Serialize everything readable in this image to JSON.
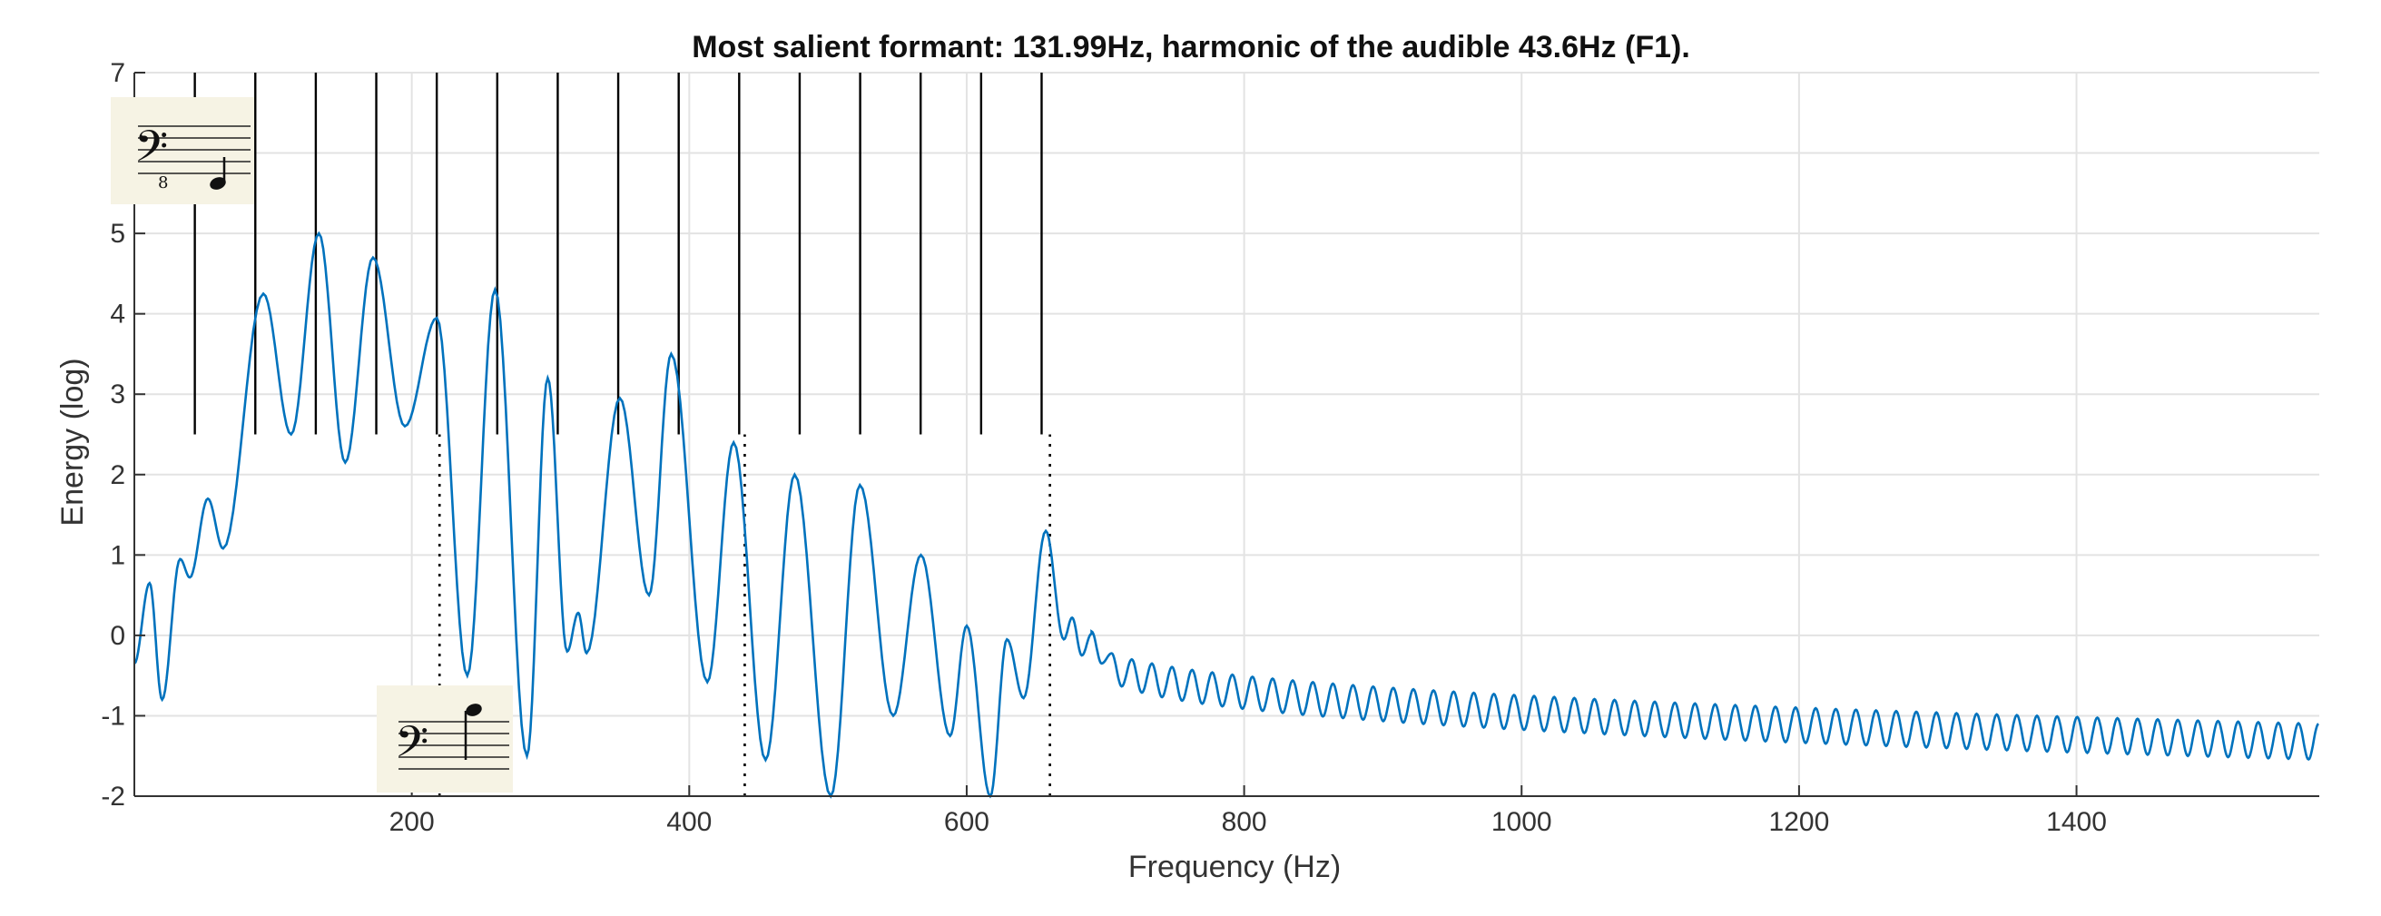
{
  "chart_data": {
    "type": "line",
    "title": "Most salient formant: 131.99Hz, harmonic of the audible 43.6Hz (F1).",
    "xlabel": "Frequency (Hz)",
    "ylabel": "Energy (log)",
    "xlim": [
      0,
      1575
    ],
    "ylim": [
      -2,
      7
    ],
    "x_ticks": [
      200,
      400,
      600,
      800,
      1000,
      1200,
      1400
    ],
    "x_tick_labels": [
      "200",
      "400",
      "600",
      "800",
      "1000",
      "1200",
      "1400"
    ],
    "y_ticks": [
      -2,
      -1,
      0,
      1,
      2,
      3,
      4,
      5,
      6,
      7
    ],
    "y_tick_labels": [
      "-2",
      "-1",
      "0",
      "1",
      "2",
      "3",
      "4",
      "5",
      "6",
      "7"
    ],
    "grid": true,
    "line_color": "#0072BD",
    "harmonic_markers": {
      "x": [
        43.6,
        87.2,
        130.8,
        174.4,
        218.0,
        261.6,
        305.2,
        348.8,
        392.4,
        436.0,
        479.6,
        523.2,
        566.8,
        610.4,
        654.0
      ],
      "y_from": 2.5,
      "y_to": 7
    },
    "dotted_markers": {
      "x": [
        220,
        440,
        660
      ],
      "y_from": -2,
      "y_to": 2.5
    },
    "series": [
      {
        "peaks": [
          {
            "x": 11,
            "y": 0.65
          },
          {
            "x": 33,
            "y": 0.95
          },
          {
            "x": 53,
            "y": 1.7
          },
          {
            "x": 93,
            "y": 4.25
          },
          {
            "x": 133,
            "y": 5.0
          },
          {
            "x": 172,
            "y": 4.7
          },
          {
            "x": 218,
            "y": 3.95
          },
          {
            "x": 260,
            "y": 4.3
          },
          {
            "x": 298,
            "y": 3.2
          },
          {
            "x": 320,
            "y": 0.28
          },
          {
            "x": 350,
            "y": 2.95
          },
          {
            "x": 387,
            "y": 3.5
          },
          {
            "x": 432,
            "y": 2.4
          },
          {
            "x": 476,
            "y": 2.0
          },
          {
            "x": 523,
            "y": 1.87
          },
          {
            "x": 567,
            "y": 1.0
          },
          {
            "x": 600,
            "y": 0.12
          },
          {
            "x": 629,
            "y": -0.05
          },
          {
            "x": 657,
            "y": 1.3
          },
          {
            "x": 676,
            "y": 0.22
          },
          {
            "x": 690,
            "y": 0.02
          }
        ],
        "troughs": [
          {
            "x": 0,
            "y": -0.35
          },
          {
            "x": 20,
            "y": -0.8
          },
          {
            "x": 40,
            "y": 0.72
          },
          {
            "x": 64,
            "y": 1.08
          },
          {
            "x": 113,
            "y": 2.5
          },
          {
            "x": 152,
            "y": 2.15
          },
          {
            "x": 195,
            "y": 2.6
          },
          {
            "x": 240,
            "y": -0.5
          },
          {
            "x": 283,
            "y": -1.5
          },
          {
            "x": 312,
            "y": -0.2
          },
          {
            "x": 326,
            "y": -0.22
          },
          {
            "x": 371,
            "y": 0.5
          },
          {
            "x": 413,
            "y": -0.58
          },
          {
            "x": 455,
            "y": -1.55
          },
          {
            "x": 502,
            "y": -2.0
          },
          {
            "x": 547,
            "y": -1.0
          },
          {
            "x": 588,
            "y": -1.25
          },
          {
            "x": 617,
            "y": -2.0
          },
          {
            "x": 641,
            "y": -0.78
          },
          {
            "x": 670,
            "y": -0.05
          },
          {
            "x": 683,
            "y": -0.25
          }
        ],
        "tail": {
          "x_from": 690,
          "x_to": 1575,
          "period": 14.5,
          "peak_start": 0.05,
          "peak_end": -1.1,
          "trough_start": -0.35,
          "trough_end": -1.55
        }
      }
    ]
  }
}
